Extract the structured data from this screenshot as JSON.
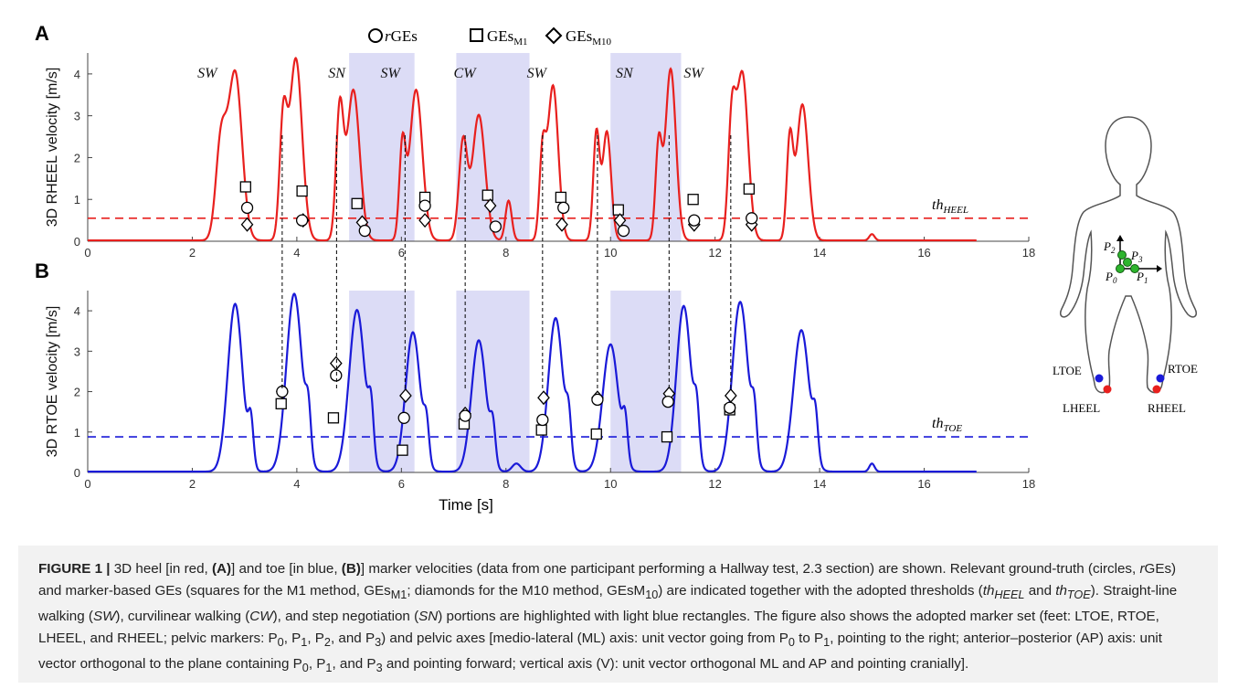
{
  "legend": {
    "rges": "rGEs",
    "m1": "GEs",
    "m1_sub": "M1",
    "m10": "GEs",
    "m10_sub": "M10"
  },
  "panel_labels": [
    "A",
    "B"
  ],
  "colors": {
    "heel": "#e8201e",
    "toe": "#1a1ad8",
    "shade": "#dcdcf6",
    "axis": "#444444"
  },
  "chart_data": [
    {
      "type": "line",
      "panel": "A",
      "ylabel": "3D RHEEL velocity [m/s]",
      "xlabel": "",
      "xlim": [
        0,
        18
      ],
      "ylim": [
        0,
        4.5
      ],
      "xticks": [
        "0",
        "2",
        "4",
        "6",
        "8",
        "10",
        "12",
        "14",
        "16",
        "18"
      ],
      "yticks": [
        "0",
        "1",
        "2",
        "3",
        "4"
      ],
      "threshold": {
        "label_base": "th",
        "label_sub": "HEEL",
        "value": 0.55
      },
      "segment_labels": [
        {
          "text": "SW",
          "x": 2.1
        },
        {
          "text": "SN",
          "x": 4.6
        },
        {
          "text": "SW",
          "x": 5.6
        },
        {
          "text": "CW",
          "x": 7.0
        },
        {
          "text": "SW",
          "x": 8.4
        },
        {
          "text": "SN",
          "x": 10.1
        },
        {
          "text": "SW",
          "x": 11.4
        }
      ],
      "shaded_regions": [
        [
          5.0,
          6.25
        ],
        [
          7.05,
          8.45
        ],
        [
          10.0,
          11.35
        ]
      ],
      "series": [
        {
          "peaks": [
            [
              2.55,
              2.3,
              0.1
            ],
            [
              2.82,
              4.0,
              0.13
            ],
            [
              3.74,
              2.75,
              0.07
            ],
            [
              3.98,
              4.35,
              0.12
            ],
            [
              4.82,
              3.05,
              0.07
            ],
            [
              5.08,
              3.6,
              0.12
            ],
            [
              6.02,
              2.2,
              0.06
            ],
            [
              6.28,
              3.6,
              0.12
            ],
            [
              7.18,
              2.35,
              0.08
            ],
            [
              7.48,
              3.0,
              0.12
            ],
            [
              8.05,
              0.95,
              0.06
            ],
            [
              8.7,
              2.0,
              0.06
            ],
            [
              8.9,
              3.7,
              0.1
            ],
            [
              9.73,
              2.55,
              0.06
            ],
            [
              9.93,
              2.6,
              0.08
            ],
            [
              10.92,
              2.25,
              0.06
            ],
            [
              11.15,
              4.1,
              0.1
            ],
            [
              12.32,
              2.7,
              0.07
            ],
            [
              12.52,
              4.0,
              0.11
            ],
            [
              13.43,
              2.35,
              0.06
            ],
            [
              13.67,
              3.25,
              0.11
            ],
            [
              15.0,
              0.15,
              0.05
            ]
          ],
          "values_note": ""
        }
      ],
      "markers": {
        "rges": [
          [
            3.05,
            0.8
          ],
          [
            4.1,
            0.5
          ],
          [
            5.3,
            0.25
          ],
          [
            6.45,
            0.85
          ],
          [
            7.8,
            0.35
          ],
          [
            9.1,
            0.8
          ],
          [
            10.25,
            0.25
          ],
          [
            11.6,
            0.5
          ],
          [
            12.7,
            0.55
          ]
        ],
        "m1": [
          [
            3.02,
            1.3
          ],
          [
            4.1,
            1.2
          ],
          [
            5.15,
            0.9
          ],
          [
            6.45,
            1.05
          ],
          [
            7.65,
            1.1
          ],
          [
            9.05,
            1.05
          ],
          [
            10.15,
            0.75
          ],
          [
            11.58,
            1.0
          ],
          [
            12.65,
            1.25
          ]
        ],
        "m10": [
          [
            3.05,
            0.4
          ],
          [
            4.12,
            0.5
          ],
          [
            5.25,
            0.45
          ],
          [
            6.45,
            0.5
          ],
          [
            7.7,
            0.85
          ],
          [
            9.07,
            0.4
          ],
          [
            10.18,
            0.5
          ],
          [
            11.6,
            0.4
          ],
          [
            12.7,
            0.4
          ]
        ]
      }
    },
    {
      "type": "line",
      "panel": "B",
      "ylabel": "3D RTOE velocity [m/s]",
      "xlabel": "Time [s]",
      "xlim": [
        0,
        18
      ],
      "ylim": [
        0,
        4.5
      ],
      "xticks": [
        "0",
        "2",
        "4",
        "6",
        "8",
        "10",
        "12",
        "14",
        "16",
        "18"
      ],
      "yticks": [
        "0",
        "1",
        "2",
        "3",
        "4"
      ],
      "threshold": {
        "label_base": "th",
        "label_sub": "TOE",
        "value": 0.88
      },
      "shaded_regions": [
        [
          5.0,
          6.25
        ],
        [
          7.05,
          8.45
        ],
        [
          10.0,
          11.35
        ]
      ],
      "series": [
        {
          "peaks": [
            [
              2.82,
              4.15,
              0.14
            ],
            [
              3.12,
              1.1,
              0.05
            ],
            [
              3.95,
              4.4,
              0.15
            ],
            [
              4.22,
              1.1,
              0.05
            ],
            [
              5.15,
              4.0,
              0.15
            ],
            [
              5.42,
              1.2,
              0.05
            ],
            [
              6.22,
              3.45,
              0.14
            ],
            [
              6.48,
              0.9,
              0.05
            ],
            [
              7.48,
              3.25,
              0.14
            ],
            [
              7.75,
              0.9,
              0.05
            ],
            [
              8.2,
              0.2,
              0.08
            ],
            [
              8.95,
              3.8,
              0.14
            ],
            [
              9.2,
              1.0,
              0.05
            ],
            [
              10.0,
              3.15,
              0.15
            ],
            [
              10.28,
              1.0,
              0.05
            ],
            [
              11.4,
              4.1,
              0.14
            ],
            [
              11.65,
              1.15,
              0.05
            ],
            [
              12.48,
              4.2,
              0.15
            ],
            [
              12.75,
              1.1,
              0.05
            ],
            [
              13.65,
              3.5,
              0.15
            ],
            [
              13.92,
              1.0,
              0.05
            ],
            [
              15.0,
              0.2,
              0.05
            ]
          ]
        }
      ],
      "markers": {
        "rges": [
          [
            3.72,
            2.0
          ],
          [
            4.75,
            2.4
          ],
          [
            6.05,
            1.35
          ],
          [
            7.22,
            1.4
          ],
          [
            8.7,
            1.3
          ],
          [
            9.75,
            1.8
          ],
          [
            11.1,
            1.75
          ],
          [
            12.28,
            1.6
          ]
        ],
        "m1": [
          [
            3.7,
            1.7
          ],
          [
            4.7,
            1.35
          ],
          [
            6.02,
            0.55
          ],
          [
            7.2,
            1.2
          ],
          [
            8.68,
            1.05
          ],
          [
            9.73,
            0.95
          ],
          [
            11.08,
            0.88
          ],
          [
            12.28,
            1.55
          ]
        ],
        "m10": [
          [
            3.72,
            2.0
          ],
          [
            4.75,
            2.7
          ],
          [
            6.08,
            1.9
          ],
          [
            7.22,
            1.45
          ],
          [
            8.72,
            1.85
          ],
          [
            9.75,
            1.85
          ],
          [
            11.12,
            1.95
          ],
          [
            12.3,
            1.9
          ]
        ]
      },
      "event_lines": [
        3.72,
        4.76,
        6.07,
        7.22,
        8.7,
        9.75,
        11.12,
        12.3
      ]
    }
  ],
  "body_diagram": {
    "P0": "P",
    "P0_sub": "0",
    "P1": "P",
    "P1_sub": "1",
    "P2": "P",
    "P2_sub": "2",
    "P3": "P",
    "P3_sub": "3",
    "ltoe": "LTOE",
    "rtoe": "RTOE",
    "lheel": "LHEEL",
    "rheel": "RHEEL"
  },
  "caption": {
    "fig_label": "FIGURE 1 |",
    "t1": " 3D heel [in red, ",
    "t2": "(A)",
    "t3": "] and toe [in blue, ",
    "t4": "(B)",
    "t5": "] marker velocities (data from one participant performing a Hallway test, 2.3 section) are shown. Relevant ground-truth (circles, ",
    "t6": "r",
    "t7": "GEs) and marker-based GEs (squares for the M1 method, GEs",
    "t8": "M1",
    "t9": "; diamonds for the M10 method, GEsM",
    "t10": "10",
    "t11": ") are indicated together with the adopted thresholds (",
    "t12": "th",
    "t13": "HEEL",
    "t14": " and ",
    "t15": "th",
    "t16": "TOE",
    "t17": "). Straight-line walking (",
    "t18": "SW",
    "t19": "), curvilinear walking (",
    "t20": "CW",
    "t21": "), and step negotiation (",
    "t22": "SN",
    "t23": ") portions are highlighted with light blue rectangles. The figure also shows the adopted marker set (feet: LTOE, RTOE, LHEEL, and RHEEL; pelvic markers: P",
    "t24": "0",
    "t25": ", P",
    "t26": "1",
    "t27": ", P",
    "t28": "2",
    "t29": ", and P",
    "t30": "3",
    "t31": ") and pelvic axes [medio-lateral (ML) axis: unit vector going from P",
    "t32": "0",
    "t33": " to P",
    "t34": "1",
    "t35": ", pointing to the right; anterior–posterior (AP) axis: unit vector orthogonal to the plane containing P",
    "t36": "0",
    "t37": ", P",
    "t38": "1",
    "t39": ", and P",
    "t40": "3",
    "t41": " and pointing forward; vertical axis (V): unit vector orthogonal ML and AP and pointing cranially]."
  }
}
